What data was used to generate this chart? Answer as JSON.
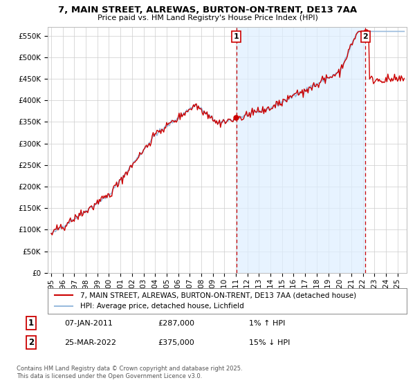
{
  "title_line1": "7, MAIN STREET, ALREWAS, BURTON-ON-TRENT, DE13 7AA",
  "title_line2": "Price paid vs. HM Land Registry's House Price Index (HPI)",
  "yticks": [
    0,
    50000,
    100000,
    150000,
    200000,
    250000,
    300000,
    350000,
    400000,
    450000,
    500000,
    550000
  ],
  "ytick_labels": [
    "£0",
    "£50K",
    "£100K",
    "£150K",
    "£200K",
    "£250K",
    "£300K",
    "£350K",
    "£400K",
    "£450K",
    "£500K",
    "£550K"
  ],
  "ylim": [
    0,
    570000
  ],
  "xlim_start": 1994.7,
  "xlim_end": 2025.8,
  "hpi_color": "#99bbdd",
  "price_color": "#cc0000",
  "vline_color": "#cc0000",
  "shade_color": "#ddeeff",
  "marker1_x": 2011.03,
  "marker1_y": 287000,
  "marker1_label": "1",
  "marker2_x": 2022.23,
  "marker2_y": 375000,
  "marker2_label": "2",
  "legend_line1": "7, MAIN STREET, ALREWAS, BURTON-ON-TRENT, DE13 7AA (detached house)",
  "legend_line2": "HPI: Average price, detached house, Lichfield",
  "annotation1_box": "1",
  "annotation1_date": "07-JAN-2011",
  "annotation1_price": "£287,000",
  "annotation1_hpi": "1% ↑ HPI",
  "annotation2_box": "2",
  "annotation2_date": "25-MAR-2022",
  "annotation2_price": "£375,000",
  "annotation2_hpi": "15% ↓ HPI",
  "footnote": "Contains HM Land Registry data © Crown copyright and database right 2025.\nThis data is licensed under the Open Government Licence v3.0.",
  "background_color": "#ffffff",
  "grid_color": "#cccccc"
}
